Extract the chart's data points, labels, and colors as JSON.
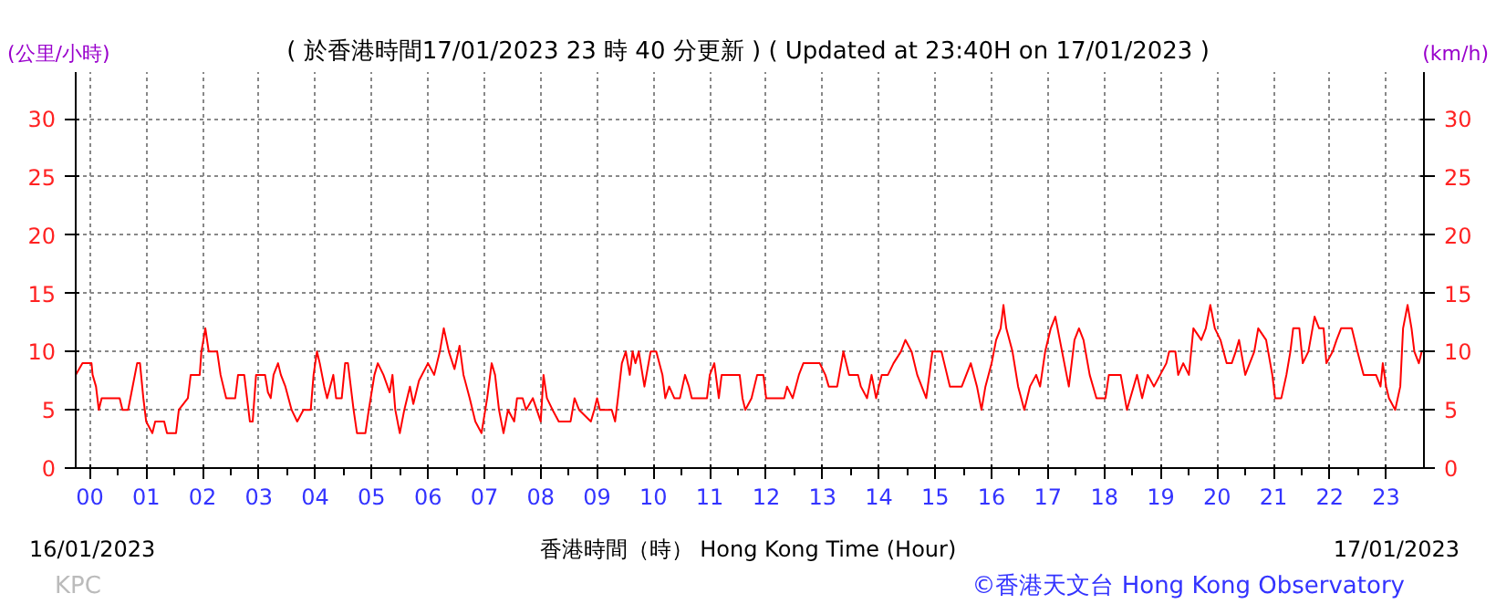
{
  "chart_data": {
    "type": "line",
    "title": "( 於香港時間17/01/2023 23 時 40 分更新 ) ( Updated at 23:40H on 17/01/2023 )",
    "ylabel": "(公里/小時)",
    "y2label": "(km/h)",
    "xlabel": "香港時間（時） Hong Kong Time (Hour)",
    "annotations": [
      "16/01/2023",
      "17/01/2023",
      "©香港天文台 Hong Kong Observatory",
      "KPC"
    ],
    "xlim": [
      -0.25,
      23.67
    ],
    "xticks": [
      {
        "value": 0,
        "label": "00"
      },
      {
        "value": 1,
        "label": "01"
      },
      {
        "value": 2,
        "label": "02"
      },
      {
        "value": 3,
        "label": "03"
      },
      {
        "value": 4,
        "label": "04"
      },
      {
        "value": 5,
        "label": "05"
      },
      {
        "value": 6,
        "label": "06"
      },
      {
        "value": 7,
        "label": "07"
      },
      {
        "value": 8,
        "label": "08"
      },
      {
        "value": 9,
        "label": "09"
      },
      {
        "value": 10,
        "label": "10"
      },
      {
        "value": 11,
        "label": "11"
      },
      {
        "value": 12,
        "label": "12"
      },
      {
        "value": 13,
        "label": "13"
      },
      {
        "value": 14,
        "label": "14"
      },
      {
        "value": 15,
        "label": "15"
      },
      {
        "value": 16,
        "label": "16"
      },
      {
        "value": 17,
        "label": "17"
      },
      {
        "value": 18,
        "label": "18"
      },
      {
        "value": 19,
        "label": "19"
      },
      {
        "value": 20,
        "label": "20"
      },
      {
        "value": 21,
        "label": "21"
      },
      {
        "value": 22,
        "label": "22"
      },
      {
        "value": 23,
        "label": "23"
      }
    ],
    "ylim": [
      0,
      34
    ],
    "yticks": [
      0,
      5,
      10,
      15,
      20,
      25,
      30
    ],
    "y2lim": [
      0,
      34
    ],
    "y2ticks": [
      0,
      5,
      10,
      15,
      20,
      25,
      30
    ],
    "grid": true,
    "line_style": "solid",
    "marker": "none",
    "series": [
      {
        "color": "#ff0000",
        "x": [
          -0.25,
          -0.13,
          0.03,
          0.05,
          0.11,
          0.16,
          0.21,
          0.53,
          0.58,
          0.68,
          0.74,
          0.84,
          0.89,
          0.95,
          1.0,
          1.11,
          1.16,
          1.32,
          1.37,
          1.53,
          1.58,
          1.74,
          1.79,
          1.95,
          1.98,
          2.05,
          2.11,
          2.26,
          2.32,
          2.42,
          2.58,
          2.63,
          2.74,
          2.84,
          2.89,
          2.95,
          3.11,
          3.16,
          3.21,
          3.26,
          3.34,
          3.39,
          3.47,
          3.58,
          3.68,
          3.79,
          3.92,
          3.97,
          4.03,
          4.08,
          4.16,
          4.21,
          4.32,
          4.37,
          4.47,
          4.53,
          4.58,
          4.68,
          4.74,
          4.89,
          4.95,
          5.05,
          5.11,
          5.21,
          5.32,
          5.37,
          5.42,
          5.5,
          5.58,
          5.68,
          5.74,
          5.84,
          6.0,
          6.11,
          6.21,
          6.28,
          6.37,
          6.47,
          6.56,
          6.63,
          6.74,
          6.84,
          6.95,
          7.05,
          7.13,
          7.19,
          7.26,
          7.34,
          7.42,
          7.53,
          7.58,
          7.68,
          7.74,
          7.86,
          8.0,
          8.05,
          8.11,
          8.21,
          8.32,
          8.53,
          8.6,
          8.68,
          8.89,
          8.95,
          9.0,
          9.05,
          9.26,
          9.32,
          9.37,
          9.44,
          9.51,
          9.58,
          9.63,
          9.68,
          9.74,
          9.84,
          9.95,
          10.05,
          10.16,
          10.21,
          10.28,
          10.37,
          10.47,
          10.56,
          10.63,
          10.68,
          10.95,
          11.0,
          11.08,
          11.16,
          11.21,
          11.53,
          11.58,
          11.63,
          11.74,
          11.84,
          11.95,
          12.0,
          12.32,
          12.37,
          12.47,
          12.58,
          12.66,
          12.84,
          12.95,
          13.05,
          13.11,
          13.26,
          13.37,
          13.47,
          13.63,
          13.68,
          13.79,
          13.87,
          13.95,
          14.05,
          14.16,
          14.26,
          14.39,
          14.47,
          14.58,
          14.68,
          14.84,
          14.95,
          15.11,
          15.16,
          15.26,
          15.47,
          15.63,
          15.74,
          15.82,
          15.89,
          16.0,
          16.08,
          16.16,
          16.21,
          16.26,
          16.37,
          16.47,
          16.58,
          16.68,
          16.79,
          16.86,
          16.95,
          17.05,
          17.13,
          17.21,
          17.37,
          17.47,
          17.55,
          17.63,
          17.74,
          17.86,
          18.02,
          18.08,
          18.29,
          18.4,
          18.58,
          18.67,
          18.77,
          18.88,
          18.99,
          19.1,
          19.15,
          19.26,
          19.31,
          19.4,
          19.5,
          19.58,
          19.72,
          19.8,
          19.88,
          19.96,
          20.06,
          20.17,
          20.26,
          20.33,
          20.39,
          20.5,
          20.58,
          20.66,
          20.73,
          20.87,
          20.98,
          21.03,
          21.14,
          21.23,
          21.3,
          21.35,
          21.46,
          21.52,
          21.62,
          21.73,
          21.81,
          21.89,
          21.94,
          22.05,
          22.12,
          22.2,
          22.39,
          22.49,
          22.6,
          22.82,
          22.9,
          22.94,
          23.0,
          23.05,
          23.16,
          23.25,
          23.3,
          23.38,
          23.45,
          23.5,
          23.58,
          23.63
        ],
        "values": [
          8,
          9,
          9,
          8,
          7,
          5,
          6,
          6,
          5,
          5,
          6.5,
          9,
          9,
          6,
          4,
          3,
          4,
          4,
          3,
          3,
          5,
          6,
          8,
          8,
          10,
          12,
          10,
          10,
          8,
          6,
          6,
          8,
          8,
          4,
          4,
          8,
          8,
          6.5,
          6,
          8,
          9,
          8,
          7,
          5,
          4,
          5,
          5,
          8,
          10,
          9,
          7,
          6,
          8,
          6,
          6,
          9,
          9,
          5,
          3,
          3,
          5,
          8,
          9,
          8,
          6.5,
          8,
          5,
          3,
          5,
          7,
          5.5,
          7.5,
          9,
          8,
          10,
          12,
          10,
          8.5,
          10.5,
          8,
          6,
          4,
          3,
          6,
          9,
          8,
          5,
          3,
          5,
          4,
          6,
          6,
          5,
          6,
          4,
          8,
          6,
          5,
          4,
          4,
          6,
          5,
          4,
          5,
          6,
          5,
          5,
          4,
          6,
          9,
          10,
          8,
          10,
          9,
          10,
          7,
          10,
          10,
          8,
          6,
          7,
          6,
          6,
          8,
          7,
          6,
          6,
          8,
          9,
          6,
          8,
          8,
          6,
          5,
          6,
          8,
          8,
          6,
          6,
          7,
          6,
          8,
          9,
          9,
          9,
          8,
          7,
          7,
          10,
          8,
          8,
          7,
          6,
          8,
          6,
          8,
          8,
          9,
          10,
          11,
          10,
          8,
          6,
          10,
          10,
          9,
          7,
          7,
          9,
          7,
          5,
          7,
          9,
          11,
          12,
          14,
          12,
          10,
          7,
          5,
          7,
          8,
          7,
          10,
          12,
          13,
          11,
          7,
          11,
          12,
          11,
          8,
          6,
          6,
          8,
          8,
          5,
          8,
          6,
          8,
          7,
          8,
          9,
          10,
          10,
          8,
          9,
          8,
          12,
          11,
          12,
          14,
          12,
          11,
          9,
          9,
          10,
          11,
          8,
          9,
          10,
          12,
          11,
          8,
          6,
          6,
          8,
          10,
          12,
          12,
          9,
          10,
          13,
          12,
          12,
          9,
          10,
          11,
          12,
          12,
          10,
          8,
          8,
          7,
          9,
          7,
          6,
          5,
          7,
          12,
          14,
          12,
          10,
          9,
          10
        ]
      }
    ]
  }
}
